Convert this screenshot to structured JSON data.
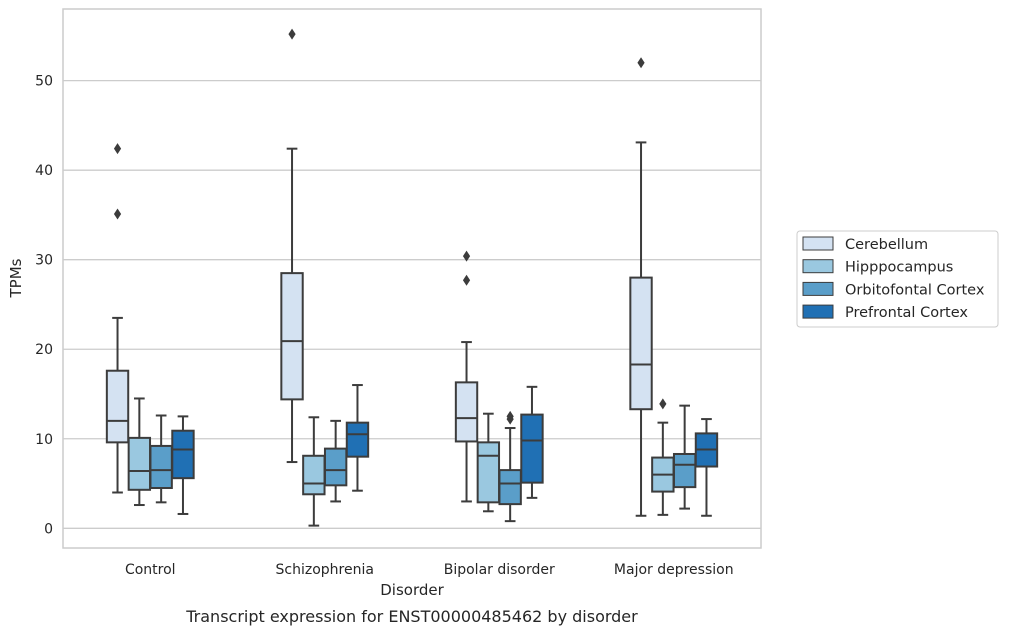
{
  "caption": "Transcript expression for ENST00000485462 by disorder",
  "chart_data": {
    "type": "boxplot",
    "xlabel": "Disorder",
    "ylabel": "TPMs",
    "ylim": [
      -2.2,
      58.0
    ],
    "yticks": [
      0,
      10,
      20,
      30,
      40,
      50
    ],
    "ytick_labels": [
      "0",
      "10",
      "20",
      "30",
      "40",
      "50"
    ],
    "grid": "horizontal",
    "legend_position": "right",
    "categories": [
      "Control",
      "Schizophrenia",
      "Bipolar disorder",
      "Major depression"
    ],
    "series": [
      {
        "name": "Cerebellum",
        "color": "#d4e2f2",
        "boxes": [
          {
            "whislo": 4.0,
            "q1": 9.6,
            "med": 12.0,
            "q3": 17.6,
            "whishi": 23.5,
            "fliers": [
              35.1,
              42.4
            ]
          },
          {
            "whislo": 7.4,
            "q1": 14.4,
            "med": 20.9,
            "q3": 28.5,
            "whishi": 42.4,
            "fliers": [
              55.2
            ]
          },
          {
            "whislo": 3.0,
            "q1": 9.7,
            "med": 12.3,
            "q3": 16.3,
            "whishi": 20.8,
            "fliers": [
              27.7,
              30.4
            ]
          },
          {
            "whislo": 1.4,
            "q1": 13.3,
            "med": 18.3,
            "q3": 28.0,
            "whishi": 43.1,
            "fliers": [
              52.0
            ]
          }
        ]
      },
      {
        "name": "Hipppocampus",
        "color": "#9ac8e0",
        "boxes": [
          {
            "whislo": 2.6,
            "q1": 4.3,
            "med": 6.4,
            "q3": 10.1,
            "whishi": 14.5,
            "fliers": []
          },
          {
            "whislo": 0.3,
            "q1": 3.8,
            "med": 5.0,
            "q3": 8.1,
            "whishi": 12.4,
            "fliers": []
          },
          {
            "whislo": 1.9,
            "q1": 2.9,
            "med": 8.1,
            "q3": 9.6,
            "whishi": 12.8,
            "fliers": []
          },
          {
            "whislo": 1.5,
            "q1": 4.1,
            "med": 6.0,
            "q3": 7.9,
            "whishi": 11.8,
            "fliers": [
              13.9
            ]
          }
        ]
      },
      {
        "name": "Orbitofontal Cortex",
        "color": "#5a9ec9",
        "boxes": [
          {
            "whislo": 2.9,
            "q1": 4.5,
            "med": 6.5,
            "q3": 9.2,
            "whishi": 12.6,
            "fliers": []
          },
          {
            "whislo": 3.0,
            "q1": 4.8,
            "med": 6.5,
            "q3": 8.9,
            "whishi": 12.0,
            "fliers": []
          },
          {
            "whislo": 0.8,
            "q1": 2.7,
            "med": 5.0,
            "q3": 6.5,
            "whishi": 11.2,
            "fliers": [
              12.2,
              12.5
            ]
          },
          {
            "whislo": 2.2,
            "q1": 4.6,
            "med": 7.1,
            "q3": 8.3,
            "whishi": 13.7,
            "fliers": []
          }
        ]
      },
      {
        "name": "Prefrontal Cortex",
        "color": "#2070b4",
        "boxes": [
          {
            "whislo": 1.6,
            "q1": 5.6,
            "med": 8.8,
            "q3": 10.9,
            "whishi": 12.5,
            "fliers": []
          },
          {
            "whislo": 4.2,
            "q1": 8.0,
            "med": 10.5,
            "q3": 11.8,
            "whishi": 16.0,
            "fliers": []
          },
          {
            "whislo": 3.4,
            "q1": 5.1,
            "med": 9.8,
            "q3": 12.7,
            "whishi": 15.8,
            "fliers": []
          },
          {
            "whislo": 1.4,
            "q1": 6.9,
            "med": 8.8,
            "q3": 10.6,
            "whishi": 12.2,
            "fliers": []
          }
        ]
      }
    ]
  }
}
